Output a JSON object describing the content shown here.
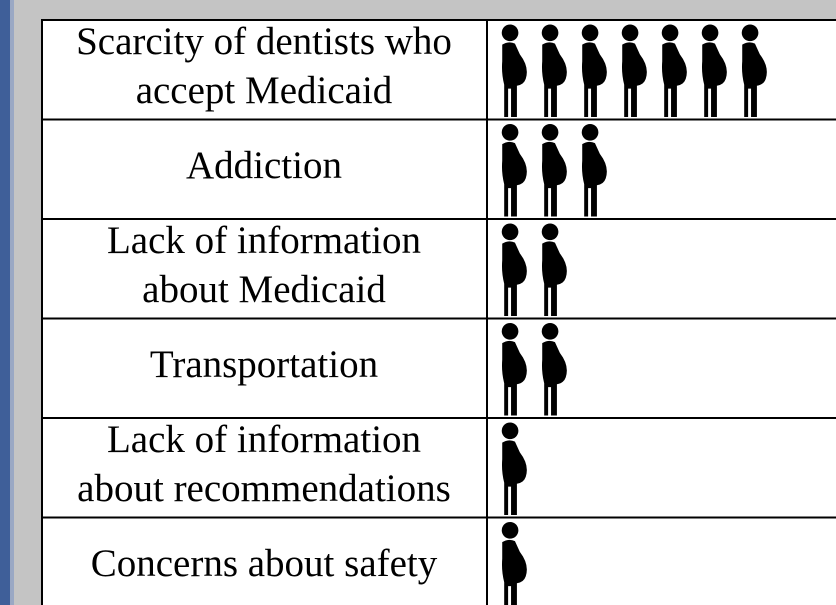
{
  "chart_data": {
    "type": "pictograph",
    "categories": [
      [
        "Scarcity of dentists who",
        "accept Medicaid"
      ],
      [
        "Addiction"
      ],
      [
        "Lack of information",
        "about Medicaid"
      ],
      [
        "Transportation"
      ],
      [
        "Lack of information",
        "about recommendations"
      ],
      [
        "Concerns about safety"
      ]
    ],
    "values": [
      7,
      3,
      2,
      2,
      1,
      1
    ],
    "color": "#000000"
  }
}
